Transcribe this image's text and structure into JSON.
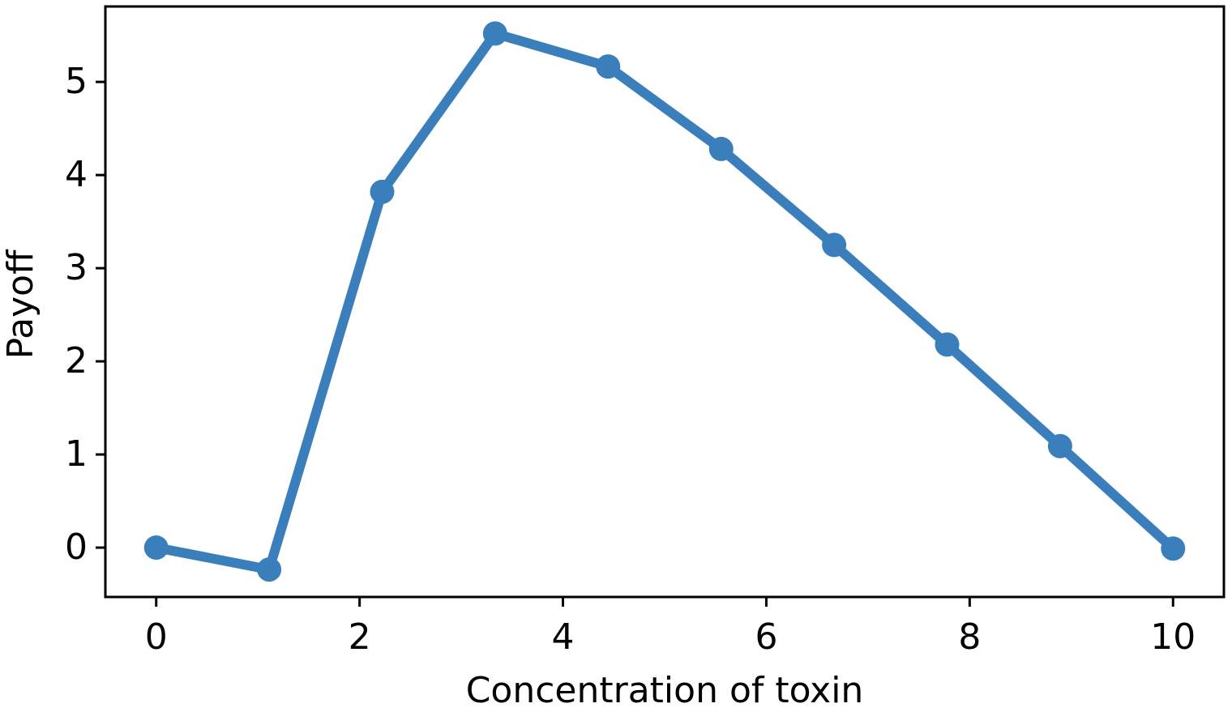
{
  "chart_data": {
    "type": "line",
    "xlabel": "Concentration of toxin",
    "ylabel": "Payoff",
    "x": [
      0,
      1.111,
      2.222,
      3.333,
      4.444,
      5.556,
      6.667,
      7.778,
      8.889,
      10
    ],
    "values": [
      0,
      -0.235,
      3.82,
      5.52,
      5.165,
      4.28,
      3.25,
      2.18,
      1.09,
      -0.01
    ],
    "color": "#3a7ebb",
    "xlim": [
      -0.5,
      10.5
    ],
    "ylim": [
      -0.53,
      5.81
    ],
    "xticks": [
      0,
      2,
      4,
      6,
      8,
      10
    ],
    "yticks": [
      0,
      1,
      2,
      3,
      4,
      5
    ],
    "grid": false
  }
}
